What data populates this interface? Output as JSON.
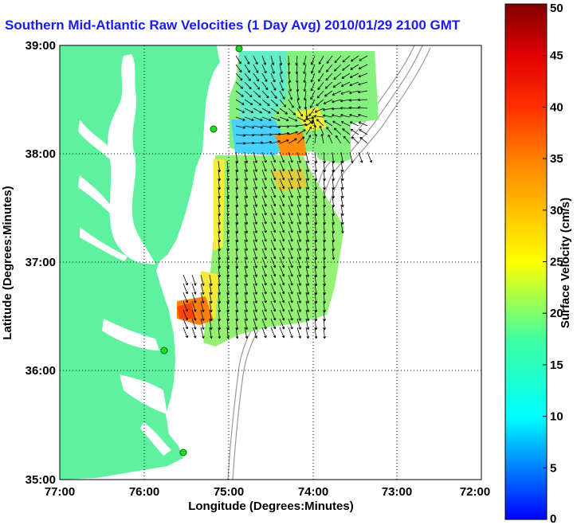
{
  "title": "Southern Mid-Atlantic Raw Velocities (1 Day Avg) 2010/01/29 2100 GMT",
  "x_axis": {
    "label": "Longitude (Degrees:Minutes)",
    "ticks": [
      "77:00",
      "76:00",
      "75:00",
      "74:00",
      "73:00",
      "72:00"
    ]
  },
  "y_axis": {
    "label": "Latitude (Degrees:Minutes)",
    "ticks": [
      "39:00",
      "38:00",
      "37:00",
      "36:00",
      "35:00"
    ]
  },
  "colorbar": {
    "label": "Surface Velocity (cm/s)",
    "ticks": [
      "0",
      "5",
      "10",
      "15",
      "20",
      "25",
      "30",
      "35",
      "40",
      "45",
      "50"
    ],
    "min": 0,
    "max": 50
  },
  "colors": {
    "land": "#5ef2a0",
    "title": "#1a1aff",
    "station": "#22dd22",
    "bathymetry": "#9a9a9a"
  }
}
